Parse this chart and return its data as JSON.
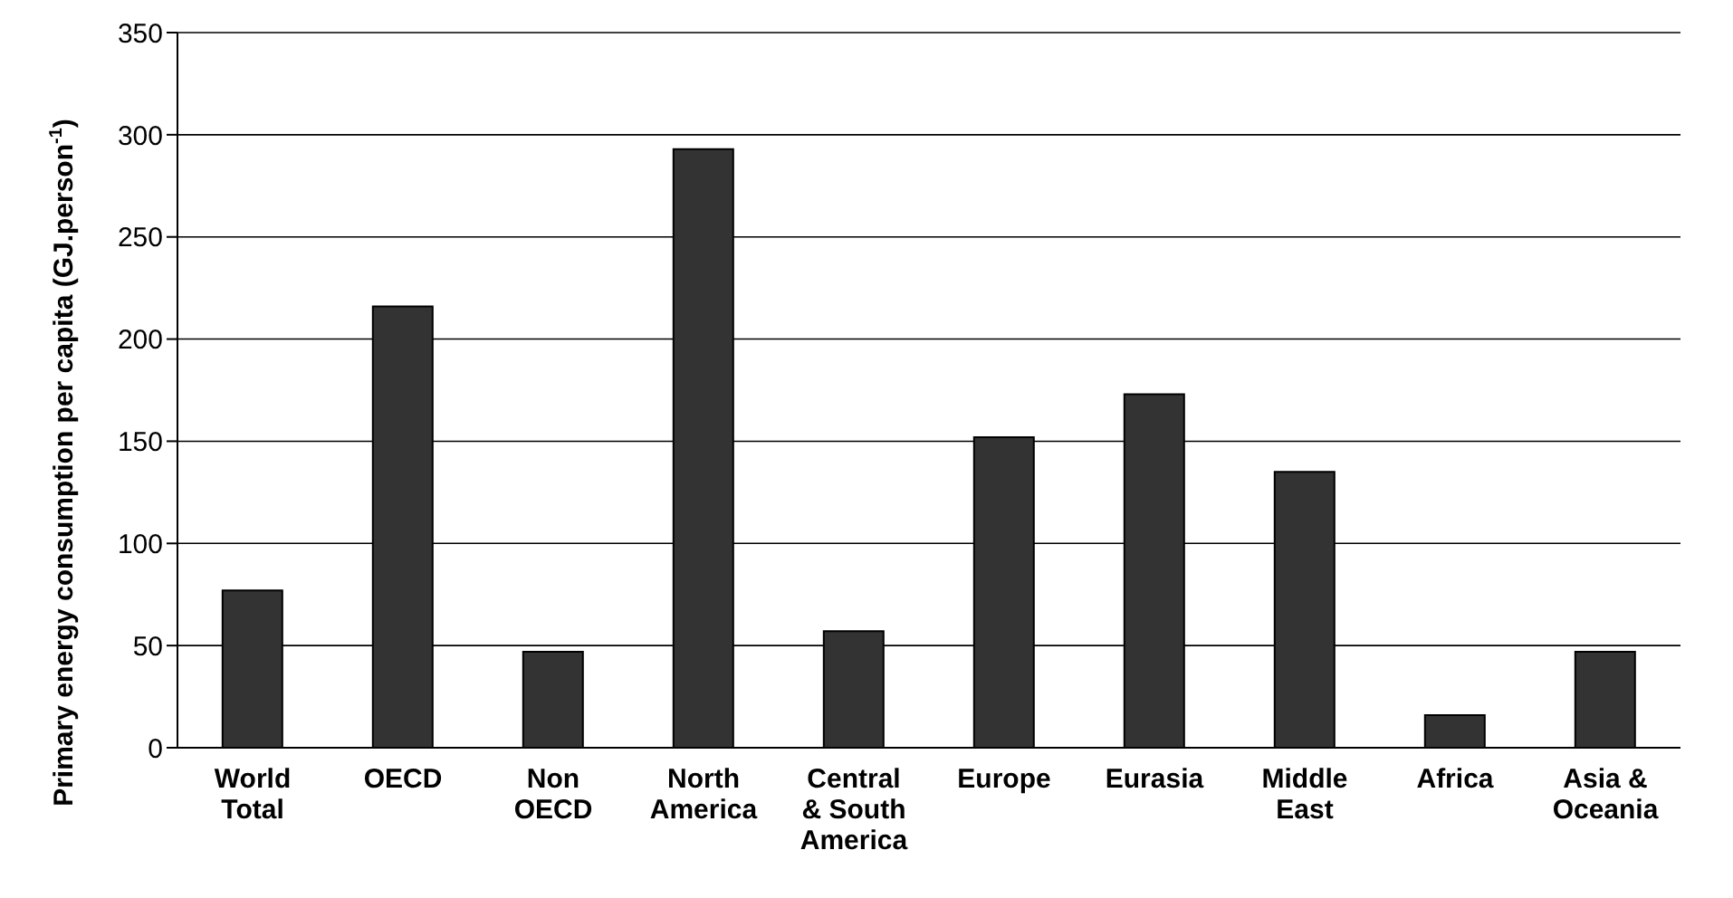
{
  "chart_data": {
    "type": "bar",
    "ylabel": "Primary energy consumption per capita (GJ.person$^{-1}$)",
    "categories": [
      "World Total",
      "OECD",
      "Non OECD",
      "North America",
      "Central & South America",
      "Europe",
      "Eurasia",
      "Middle East",
      "Africa",
      "Asia & Oceania"
    ],
    "values": [
      77,
      216,
      47,
      293,
      57,
      152,
      173,
      135,
      16,
      47
    ],
    "color": "#333333",
    "ylim": [
      0,
      350
    ],
    "yticks": [
      0,
      50,
      100,
      150,
      200,
      250,
      300,
      350
    ],
    "grid": "y"
  }
}
